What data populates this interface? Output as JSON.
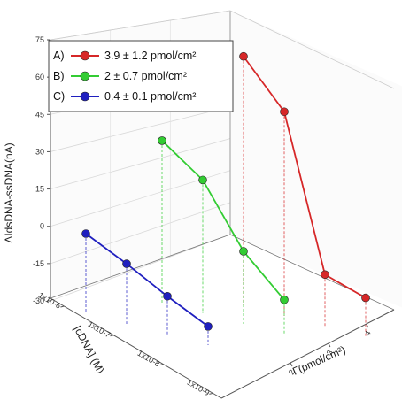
{
  "chart_data": {
    "type": "scatter",
    "projection": "3d",
    "zlabel": "ΔIdsDNA-ssDNA(nA)",
    "xlabel": "[cDNA] (M)",
    "ylabel": "Γ(pmol/cm²)",
    "zticks": [
      "75",
      "60",
      "45",
      "30",
      "15",
      "0",
      "-15",
      "-30"
    ],
    "xticks": [
      "1x10-6",
      "1x10-7",
      "1x10-8",
      "1x10-9"
    ],
    "yticks": [
      "2",
      "3",
      "4"
    ],
    "legend_position": "top-left",
    "series": [
      {
        "key": "A",
        "label_prefix": "A)",
        "name": "3.9 ± 1.2 pmol/cm²",
        "color": "#d62728",
        "points": [
          {
            "x": "1x10-6",
            "z": 74
          },
          {
            "x": "1x10-7",
            "z": 56
          },
          {
            "x": "1x10-8",
            "z": -9
          },
          {
            "x": "1x10-9",
            "z": -13
          }
        ]
      },
      {
        "key": "B",
        "label_prefix": "B)",
        "name": "2 ± 0.7 pmol/cm²",
        "color": "#33cc33",
        "points": [
          {
            "x": "1x10-6",
            "z": 36
          },
          {
            "x": "1x10-7",
            "z": 25
          },
          {
            "x": "1x10-8",
            "z": 0
          },
          {
            "x": "1x10-9",
            "z": -15
          }
        ]
      },
      {
        "key": "C",
        "label_prefix": "C)",
        "name": "0.4 ± 0.1 pmol/cm²",
        "color": "#1f1fbf",
        "points": [
          {
            "x": "1x10-6",
            "z": 0
          },
          {
            "x": "1x10-7",
            "z": -7
          },
          {
            "x": "1x10-8",
            "z": -15
          },
          {
            "x": "1x10-9",
            "z": -22
          }
        ]
      }
    ]
  }
}
